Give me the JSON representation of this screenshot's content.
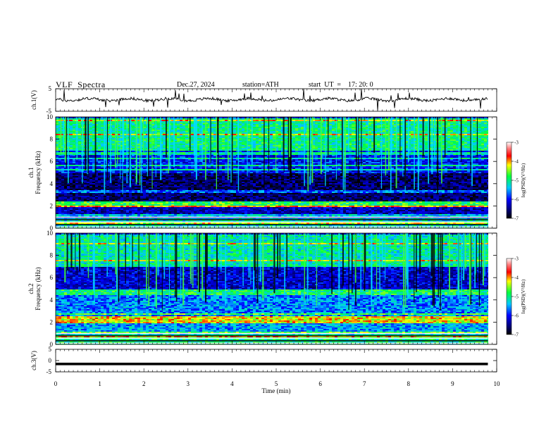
{
  "header": {
    "title": "VLF  Spectra",
    "date": "Dec.27, 2024",
    "station": "station=ATH",
    "start": "start  UT  =    17: 20: 0"
  },
  "chart_data": [
    {
      "type": "line",
      "name": "ch1-waveform",
      "ylabel": "ch.1(V)",
      "ylim": [
        -5,
        5
      ],
      "yticks": [
        "5",
        "-5"
      ],
      "xlim": [
        0,
        10
      ]
    },
    {
      "type": "heatmap",
      "name": "ch1-spectrogram",
      "ylabel_top": "ch.1",
      "ylabel": "Frequency  (kHz)",
      "ylim": [
        0,
        10
      ],
      "yticks": [
        "0",
        "2",
        "4",
        "6",
        "8",
        "10"
      ],
      "xlim": [
        0,
        9.8
      ],
      "colorbar": {
        "label": "log(PSD)(V²/Hz)",
        "range": [
          -7,
          -3
        ],
        "ticks": [
          "-3",
          "-4",
          "-5",
          "-6",
          "-7"
        ]
      },
      "bands": [
        {
          "freq": [
            0,
            1.0
          ],
          "level": -5.2
        },
        {
          "freq": [
            1.0,
            2.0
          ],
          "level": -6.3
        },
        {
          "freq": [
            2.0,
            2.5
          ],
          "level": -4.8
        },
        {
          "freq": [
            2.5,
            5.0
          ],
          "level": -6.6
        },
        {
          "freq": [
            5.0,
            7.0
          ],
          "level": -6.0
        },
        {
          "freq": [
            7.0,
            10.0
          ],
          "level": -5.0
        }
      ]
    },
    {
      "type": "heatmap",
      "name": "ch2-spectrogram",
      "ylabel_top": "ch.2",
      "ylabel": "Frequency  (kHz)",
      "ylim": [
        0,
        10
      ],
      "yticks": [
        "0",
        "2",
        "4",
        "6",
        "8",
        "10"
      ],
      "xlim": [
        0,
        9.8
      ],
      "colorbar": {
        "label": "log(PSD)(V²/Hz)",
        "range": [
          -7,
          -3
        ],
        "ticks": [
          "-3",
          "-4",
          "-5",
          "-6",
          "-7"
        ]
      },
      "bands": [
        {
          "freq": [
            0,
            1.0
          ],
          "level": -5.0
        },
        {
          "freq": [
            1.0,
            2.0
          ],
          "level": -5.5
        },
        {
          "freq": [
            2.0,
            2.6
          ],
          "level": -4.2
        },
        {
          "freq": [
            2.6,
            4.5
          ],
          "level": -5.6
        },
        {
          "freq": [
            4.5,
            5.0
          ],
          "level": -4.9
        },
        {
          "freq": [
            5.0,
            7.0
          ],
          "level": -6.2
        },
        {
          "freq": [
            7.0,
            10.0
          ],
          "level": -5.1
        }
      ]
    },
    {
      "type": "line",
      "name": "ch3-waveform",
      "ylabel": "ch.3(V)",
      "ylim": [
        -5,
        5
      ],
      "yticks": [
        "5",
        "0",
        "-5"
      ],
      "xlim": [
        0,
        10
      ],
      "value": -1.5
    }
  ],
  "xaxis": {
    "label": "Time  (min)",
    "range": [
      0,
      10
    ],
    "ticks": [
      "0",
      "1",
      "2",
      "3",
      "4",
      "5",
      "6",
      "7",
      "8",
      "9",
      "10"
    ]
  }
}
